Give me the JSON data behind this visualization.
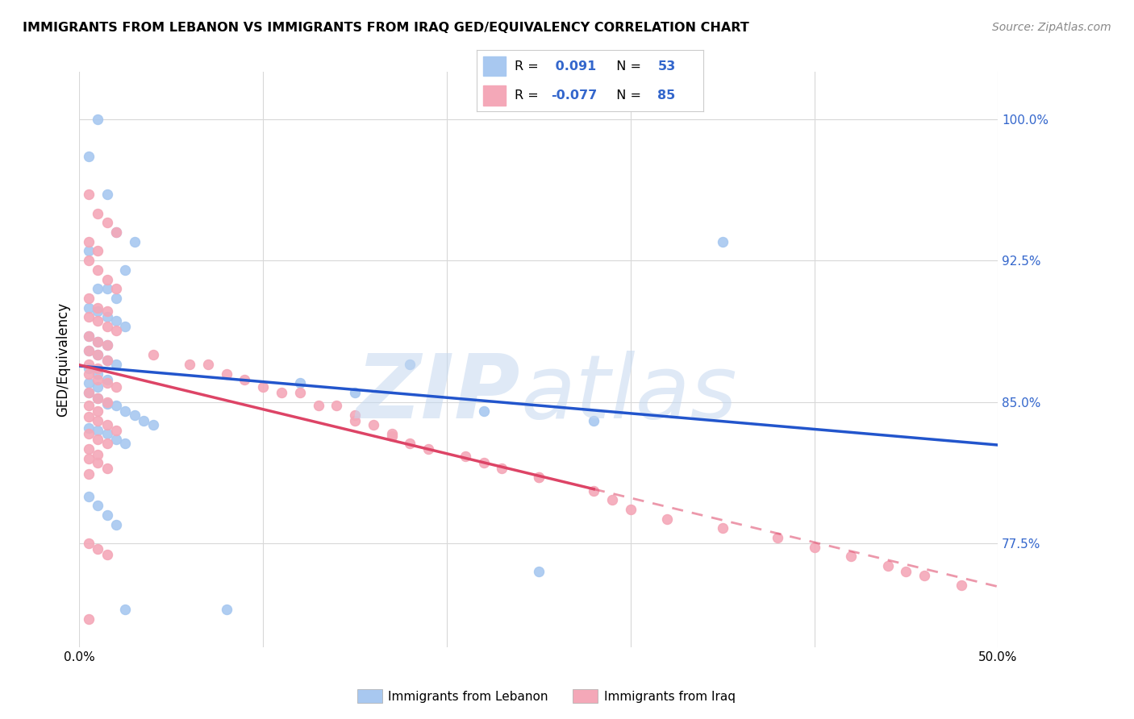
{
  "title": "IMMIGRANTS FROM LEBANON VS IMMIGRANTS FROM IRAQ GED/EQUIVALENCY CORRELATION CHART",
  "source": "Source: ZipAtlas.com",
  "ylabel": "GED/Equivalency",
  "xlim": [
    0.0,
    0.5
  ],
  "ylim": [
    0.72,
    1.025
  ],
  "yticks": [
    0.775,
    0.85,
    0.925,
    1.0
  ],
  "ytick_labels": [
    "77.5%",
    "85.0%",
    "92.5%",
    "100.0%"
  ],
  "xticks": [
    0.0,
    0.1,
    0.2,
    0.3,
    0.4,
    0.5
  ],
  "xtick_labels": [
    "0.0%",
    "",
    "",
    "",
    "",
    "50.0%"
  ],
  "color_lebanon": "#a8c8f0",
  "color_iraq": "#f4a8b8",
  "line_color_lebanon": "#2255cc",
  "line_color_iraq": "#dd4466",
  "lebanon_scatter_x": [
    0.005,
    0.01,
    0.015,
    0.02,
    0.025,
    0.03,
    0.005,
    0.01,
    0.015,
    0.02,
    0.005,
    0.01,
    0.015,
    0.02,
    0.025,
    0.005,
    0.01,
    0.015,
    0.005,
    0.01,
    0.015,
    0.02,
    0.005,
    0.01,
    0.015,
    0.005,
    0.01,
    0.005,
    0.01,
    0.015,
    0.02,
    0.025,
    0.03,
    0.035,
    0.04,
    0.005,
    0.01,
    0.015,
    0.02,
    0.025,
    0.08,
    0.12,
    0.15,
    0.18,
    0.22,
    0.28,
    0.35,
    0.005,
    0.01,
    0.015,
    0.02,
    0.025,
    0.25
  ],
  "lebanon_scatter_y": [
    0.98,
    1.0,
    0.96,
    0.94,
    0.92,
    0.935,
    0.93,
    0.91,
    0.91,
    0.905,
    0.9,
    0.898,
    0.895,
    0.893,
    0.89,
    0.885,
    0.882,
    0.88,
    0.877,
    0.875,
    0.872,
    0.87,
    0.868,
    0.865,
    0.862,
    0.86,
    0.858,
    0.855,
    0.852,
    0.849,
    0.848,
    0.845,
    0.843,
    0.84,
    0.838,
    0.836,
    0.835,
    0.833,
    0.83,
    0.828,
    0.74,
    0.86,
    0.855,
    0.87,
    0.845,
    0.84,
    0.935,
    0.8,
    0.795,
    0.79,
    0.785,
    0.74,
    0.76
  ],
  "iraq_scatter_x": [
    0.005,
    0.01,
    0.015,
    0.02,
    0.005,
    0.01,
    0.005,
    0.01,
    0.015,
    0.02,
    0.005,
    0.01,
    0.015,
    0.005,
    0.01,
    0.015,
    0.02,
    0.005,
    0.01,
    0.015,
    0.005,
    0.01,
    0.015,
    0.005,
    0.01,
    0.005,
    0.01,
    0.015,
    0.02,
    0.005,
    0.01,
    0.015,
    0.005,
    0.01,
    0.005,
    0.01,
    0.015,
    0.02,
    0.005,
    0.01,
    0.015,
    0.005,
    0.01,
    0.005,
    0.01,
    0.015,
    0.005,
    0.04,
    0.06,
    0.08,
    0.1,
    0.12,
    0.14,
    0.15,
    0.16,
    0.17,
    0.18,
    0.21,
    0.23,
    0.25,
    0.07,
    0.09,
    0.11,
    0.13,
    0.15,
    0.17,
    0.19,
    0.22,
    0.25,
    0.28,
    0.29,
    0.3,
    0.32,
    0.35,
    0.38,
    0.4,
    0.42,
    0.44,
    0.46,
    0.48,
    0.005,
    0.01,
    0.015,
    0.005,
    0.45
  ],
  "iraq_scatter_y": [
    0.96,
    0.95,
    0.945,
    0.94,
    0.935,
    0.93,
    0.925,
    0.92,
    0.915,
    0.91,
    0.905,
    0.9,
    0.898,
    0.895,
    0.893,
    0.89,
    0.888,
    0.885,
    0.882,
    0.88,
    0.877,
    0.875,
    0.872,
    0.87,
    0.868,
    0.865,
    0.862,
    0.86,
    0.858,
    0.855,
    0.852,
    0.85,
    0.848,
    0.845,
    0.842,
    0.84,
    0.838,
    0.835,
    0.833,
    0.83,
    0.828,
    0.825,
    0.822,
    0.82,
    0.818,
    0.815,
    0.812,
    0.875,
    0.87,
    0.865,
    0.858,
    0.855,
    0.848,
    0.843,
    0.838,
    0.833,
    0.828,
    0.821,
    0.815,
    0.81,
    0.87,
    0.862,
    0.855,
    0.848,
    0.84,
    0.832,
    0.825,
    0.818,
    0.81,
    0.803,
    0.798,
    0.793,
    0.788,
    0.783,
    0.778,
    0.773,
    0.768,
    0.763,
    0.758,
    0.753,
    0.775,
    0.772,
    0.769,
    0.735,
    0.76
  ]
}
